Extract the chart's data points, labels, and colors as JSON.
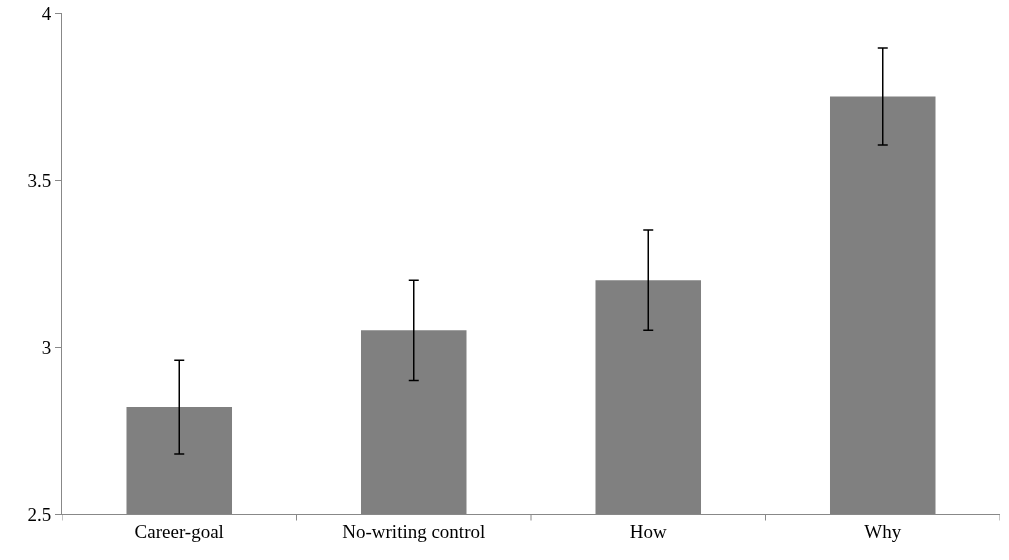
{
  "chart_data": {
    "type": "bar",
    "categories": [
      "Career-goal",
      "No-writing control",
      "How",
      "Why"
    ],
    "values": [
      2.82,
      3.05,
      3.2,
      3.75
    ],
    "errors": [
      0.14,
      0.15,
      0.15,
      0.145
    ],
    "color": "#808080",
    "ylim": [
      2.5,
      4
    ],
    "yticks": [
      2.5,
      3,
      3.5,
      4
    ],
    "grid": false,
    "legend": false
  }
}
